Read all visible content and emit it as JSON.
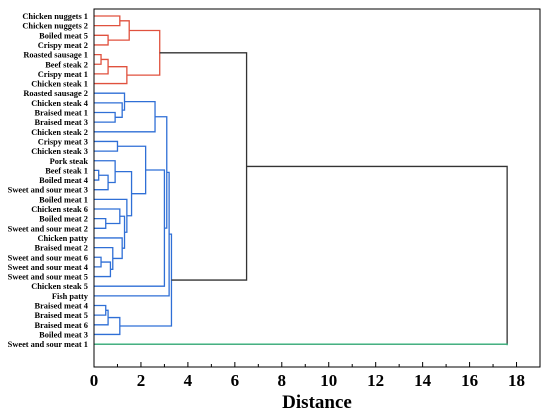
{
  "chart_data": {
    "type": "dendrogram",
    "xlabel": "Distance",
    "xlim": [
      0,
      19
    ],
    "xticks": [
      "0",
      "2",
      "4",
      "6",
      "8",
      "10",
      "12",
      "14",
      "16",
      "18"
    ],
    "xtick_values": [
      0,
      2,
      4,
      6,
      8,
      10,
      12,
      14,
      16,
      18
    ],
    "colors": {
      "cluster_red": "#e0513e",
      "cluster_blue": "#2f6fd6",
      "root": "#333333",
      "outlier_green": "#2fb57a"
    },
    "leaves": [
      "Chicken nuggets 1",
      "Chicken nuggets 2",
      "Boiled meat 5",
      "Crispy meat 2",
      "Roasted sausage 1",
      "Beef steak 2",
      "Crispy meat 1",
      "Chicken steak 1",
      "Roasted sausage 2",
      "Chicken steak 4",
      "Braised meat 1",
      "Braised meat 3",
      "Chicken steak 2",
      "Crispy meat 3",
      "Chicken steak 3",
      "Pork steak",
      "Beef steak 1",
      "Boiled meat 4",
      "Sweet and sour meat 3",
      "Boiled meat 1",
      "Chicken steak 6",
      "Boiled meat 2",
      "Sweet and sour meat 2",
      "Chicken patty",
      "Braised meat 2",
      "Sweet and sour meat 6",
      "Sweet and sour meat 4",
      "Sweet and sour meat 5",
      "Chicken steak 5",
      "Fish patty",
      "Braised meat 4",
      "Braised meat 5",
      "Braised meat 6",
      "Boiled meat 3",
      "Sweet and sour meat 1"
    ],
    "merges": [
      {
        "a": "L0",
        "b": "L1",
        "h": 1.1,
        "color": "red"
      },
      {
        "a": "L2",
        "b": "L3",
        "h": 0.6,
        "color": "red"
      },
      {
        "a": "M0",
        "b": "M1",
        "h": 1.5,
        "color": "red"
      },
      {
        "a": "L4",
        "b": "L5",
        "h": 0.3,
        "color": "red"
      },
      {
        "a": "M3",
        "b": "L6",
        "h": 0.6,
        "color": "red"
      },
      {
        "a": "M4",
        "b": "L7",
        "h": 1.4,
        "color": "red"
      },
      {
        "a": "M2",
        "b": "M5",
        "h": 2.8,
        "color": "red"
      },
      {
        "a": "L10",
        "b": "L11",
        "h": 0.9,
        "color": "blue"
      },
      {
        "a": "L9",
        "b": "M7",
        "h": 1.2,
        "color": "blue"
      },
      {
        "a": "L8",
        "b": "M8",
        "h": 1.3,
        "color": "blue"
      },
      {
        "a": "M9",
        "b": "L12",
        "h": 2.6,
        "color": "blue"
      },
      {
        "a": "L13",
        "b": "L14",
        "h": 1.0,
        "color": "blue"
      },
      {
        "a": "L16",
        "b": "L17",
        "h": 0.2,
        "color": "blue"
      },
      {
        "a": "M12",
        "b": "L18",
        "h": 0.6,
        "color": "blue"
      },
      {
        "a": "L15",
        "b": "M13",
        "h": 0.9,
        "color": "blue"
      },
      {
        "a": "L21",
        "b": "L22",
        "h": 0.5,
        "color": "blue"
      },
      {
        "a": "L20",
        "b": "M15",
        "h": 1.1,
        "color": "blue"
      },
      {
        "a": "L25",
        "b": "L26",
        "h": 0.3,
        "color": "blue"
      },
      {
        "a": "M17",
        "b": "L27",
        "h": 0.7,
        "color": "blue"
      },
      {
        "a": "L24",
        "b": "M18",
        "h": 0.8,
        "color": "blue"
      },
      {
        "a": "L23",
        "b": "M19",
        "h": 1.2,
        "color": "blue"
      },
      {
        "a": "M16",
        "b": "M20",
        "h": 1.3,
        "color": "blue"
      },
      {
        "a": "L19",
        "b": "M21",
        "h": 1.4,
        "color": "blue"
      },
      {
        "a": "M14",
        "b": "M22",
        "h": 1.6,
        "color": "blue"
      },
      {
        "a": "M11",
        "b": "M23",
        "h": 2.2,
        "color": "blue"
      },
      {
        "a": "M24",
        "b": "L28",
        "h": 3.0,
        "color": "blue"
      },
      {
        "a": "M10",
        "b": "M25",
        "h": 3.1,
        "color": "blue"
      },
      {
        "a": "M26",
        "b": "L29",
        "h": 3.2,
        "color": "blue"
      },
      {
        "a": "L30",
        "b": "L31",
        "h": 0.5,
        "color": "blue"
      },
      {
        "a": "M28",
        "b": "L32",
        "h": 0.6,
        "color": "blue"
      },
      {
        "a": "M29",
        "b": "L33",
        "h": 1.1,
        "color": "blue"
      },
      {
        "a": "M27",
        "b": "M30",
        "h": 3.3,
        "color": "blue"
      },
      {
        "a": "M6",
        "b": "M31",
        "h": 6.5,
        "color": "root"
      },
      {
        "a": "M32",
        "b": "L34",
        "h": 17.6,
        "color": "root"
      }
    ]
  }
}
